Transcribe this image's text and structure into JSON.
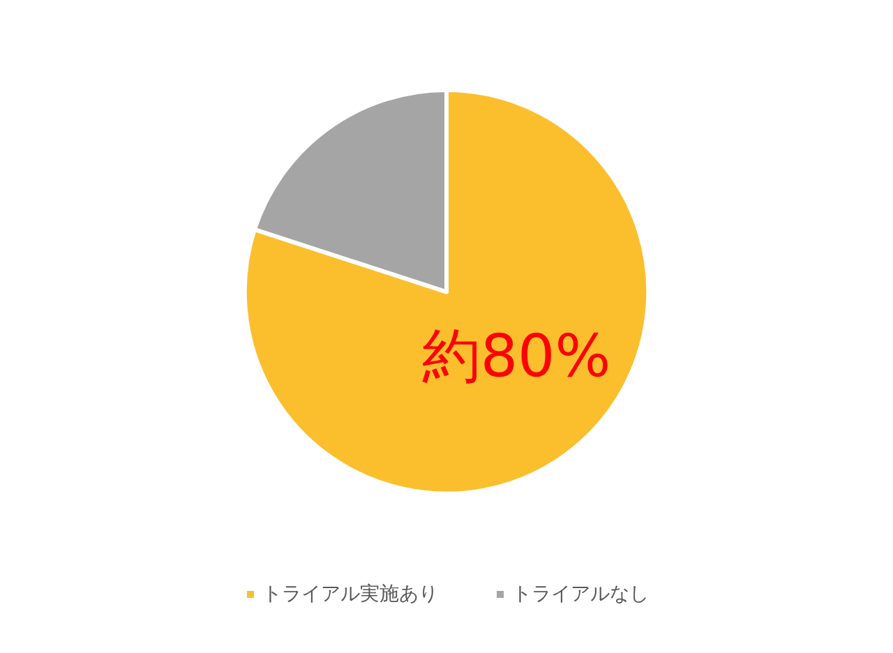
{
  "chart_data": {
    "type": "pie",
    "categories": [
      "トライアル実施あり",
      "トライアルなし"
    ],
    "values": [
      80,
      20
    ],
    "colors": [
      "#fbbf2e",
      "#a5a5a5"
    ],
    "value_labels": [
      "約80%",
      null
    ],
    "legend": "bottom"
  }
}
